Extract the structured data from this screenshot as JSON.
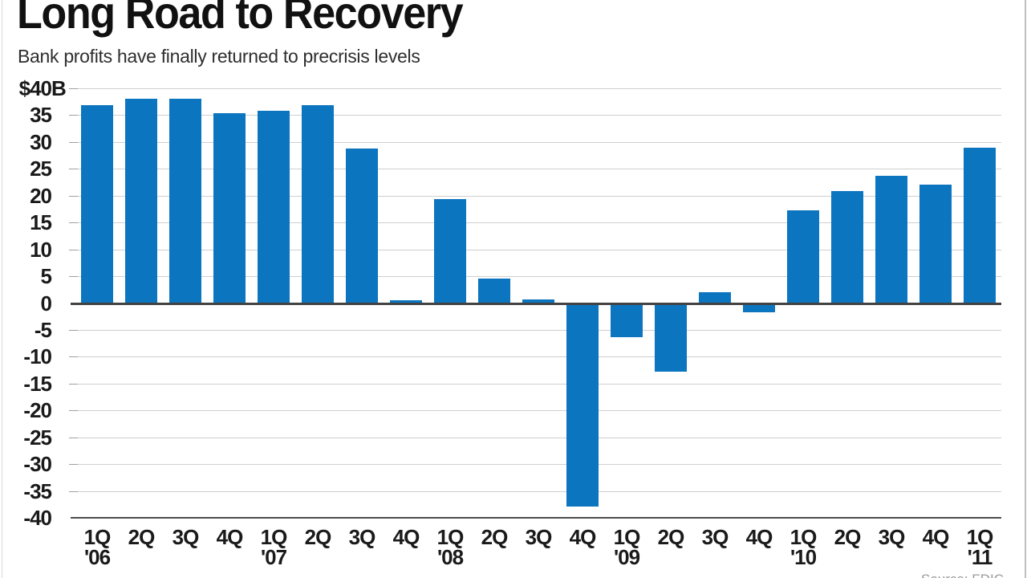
{
  "header": {
    "title": "Long Road to Recovery",
    "subtitle": "Bank profits have finally returned to precrisis levels"
  },
  "source_note": "Source: FDIC",
  "chart_data": {
    "type": "bar",
    "title": "Long Road to Recovery",
    "subtitle": "Bank profits have finally returned to precrisis levels",
    "unit": "$B",
    "ylim": [
      -40,
      40
    ],
    "ytick_step": 5,
    "ytick_labels": [
      "$40|B",
      "35",
      "30",
      "25",
      "20",
      "15",
      "10",
      "5",
      "0",
      "-5",
      "-10",
      "-15",
      "-20",
      "-25",
      "-30",
      "-35",
      "-40"
    ],
    "grid": true,
    "legend_position": "none",
    "bar_color": "#0c75c0",
    "categories": [
      "1Q '06",
      "2Q",
      "3Q",
      "4Q",
      "1Q '07",
      "2Q",
      "3Q",
      "4Q",
      "1Q '08",
      "2Q",
      "3Q",
      "4Q",
      "1Q '09",
      "2Q",
      "3Q",
      "4Q",
      "1Q '10",
      "2Q",
      "3Q",
      "4Q",
      "1Q '11"
    ],
    "x_quarter_labels": [
      "1Q",
      "2Q",
      "3Q",
      "4Q",
      "1Q",
      "2Q",
      "3Q",
      "4Q",
      "1Q",
      "2Q",
      "3Q",
      "4Q",
      "1Q",
      "2Q",
      "3Q",
      "4Q",
      "1Q",
      "2Q",
      "3Q",
      "4Q",
      "1Q"
    ],
    "x_year_labels": {
      "0": "'06",
      "4": "'07",
      "8": "'08",
      "12": "'09",
      "16": "'10",
      "20": "'11"
    },
    "values": [
      36.9,
      38.0,
      38.0,
      35.3,
      35.8,
      36.8,
      28.8,
      0.5,
      19.3,
      4.6,
      0.7,
      -37.9,
      -6.3,
      -12.7,
      2.0,
      -1.7,
      17.2,
      20.8,
      23.7,
      22.1,
      29.0
    ]
  }
}
